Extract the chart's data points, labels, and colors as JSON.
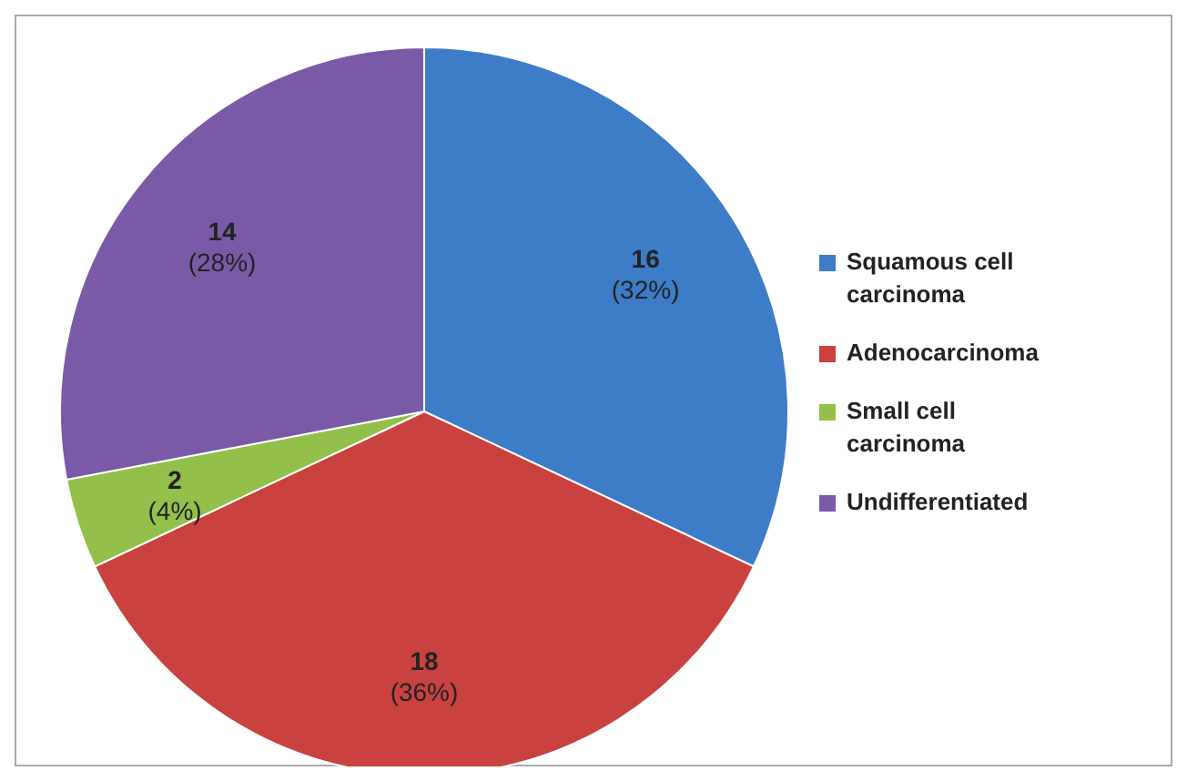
{
  "chart_data": {
    "type": "pie",
    "categories": [
      "Squamous cell carcinoma",
      "Adenocarcinoma",
      "Small cell carcinoma",
      "Undifferentiated"
    ],
    "values": [
      16,
      18,
      2,
      14
    ],
    "colors": [
      "#3d7cc6",
      "#c9423f",
      "#92c04a",
      "#7a5aa6"
    ],
    "value_labels": [
      "16\n(32%)",
      "18\n(36%)",
      "2\n(4%)",
      "14\n(28%)"
    ],
    "legend": "right"
  }
}
